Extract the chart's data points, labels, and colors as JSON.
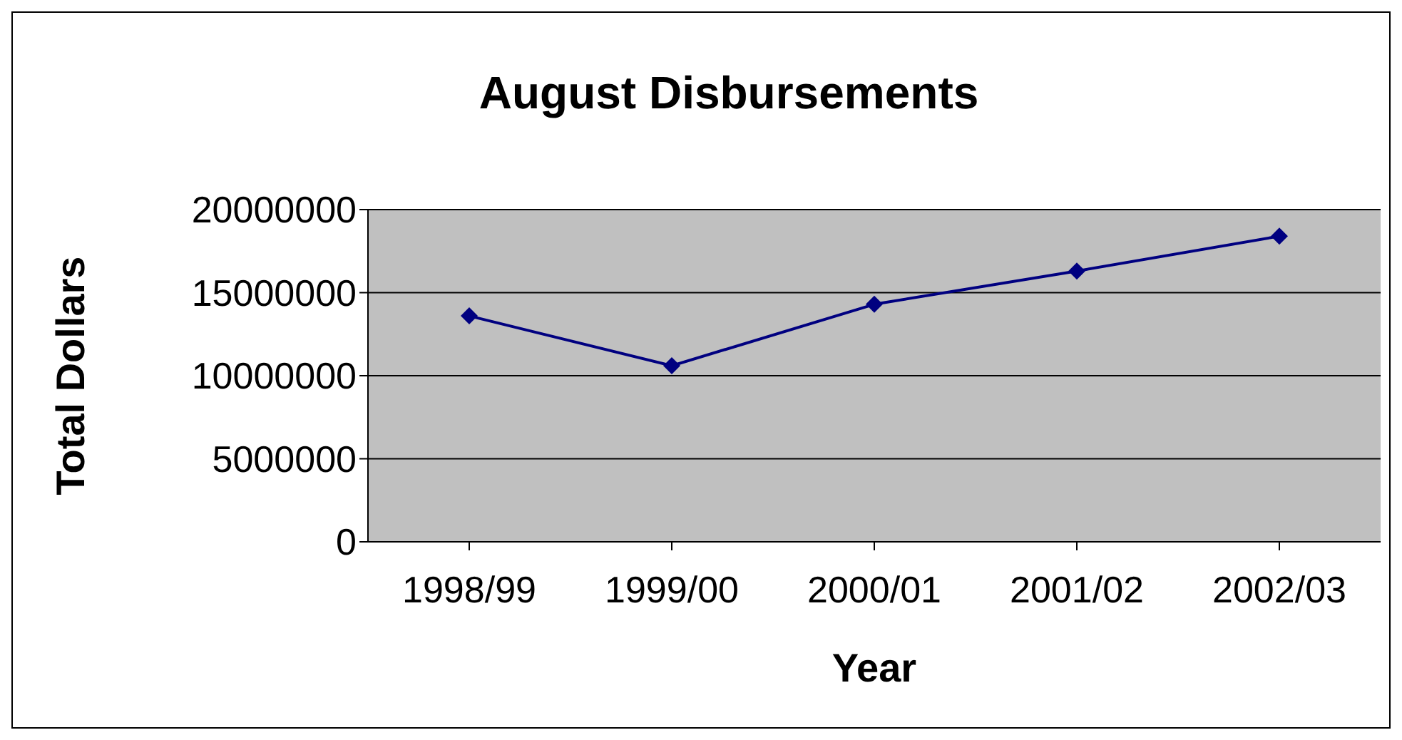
{
  "chart_data": {
    "type": "line",
    "title": "August Disbursements",
    "xlabel": "Year",
    "ylabel": "Total Dollars",
    "categories": [
      "1998/99",
      "1999/00",
      "2000/01",
      "2001/02",
      "2002/03"
    ],
    "series": [
      {
        "color": "#000080",
        "values": [
          13600000,
          10600000,
          14300000,
          16300000,
          18400000
        ]
      }
    ],
    "ylim": [
      0,
      20000000
    ],
    "yticks": [
      0,
      5000000,
      10000000,
      15000000,
      20000000
    ],
    "grid": "y",
    "marker": "diamond",
    "line_style": "solid"
  }
}
